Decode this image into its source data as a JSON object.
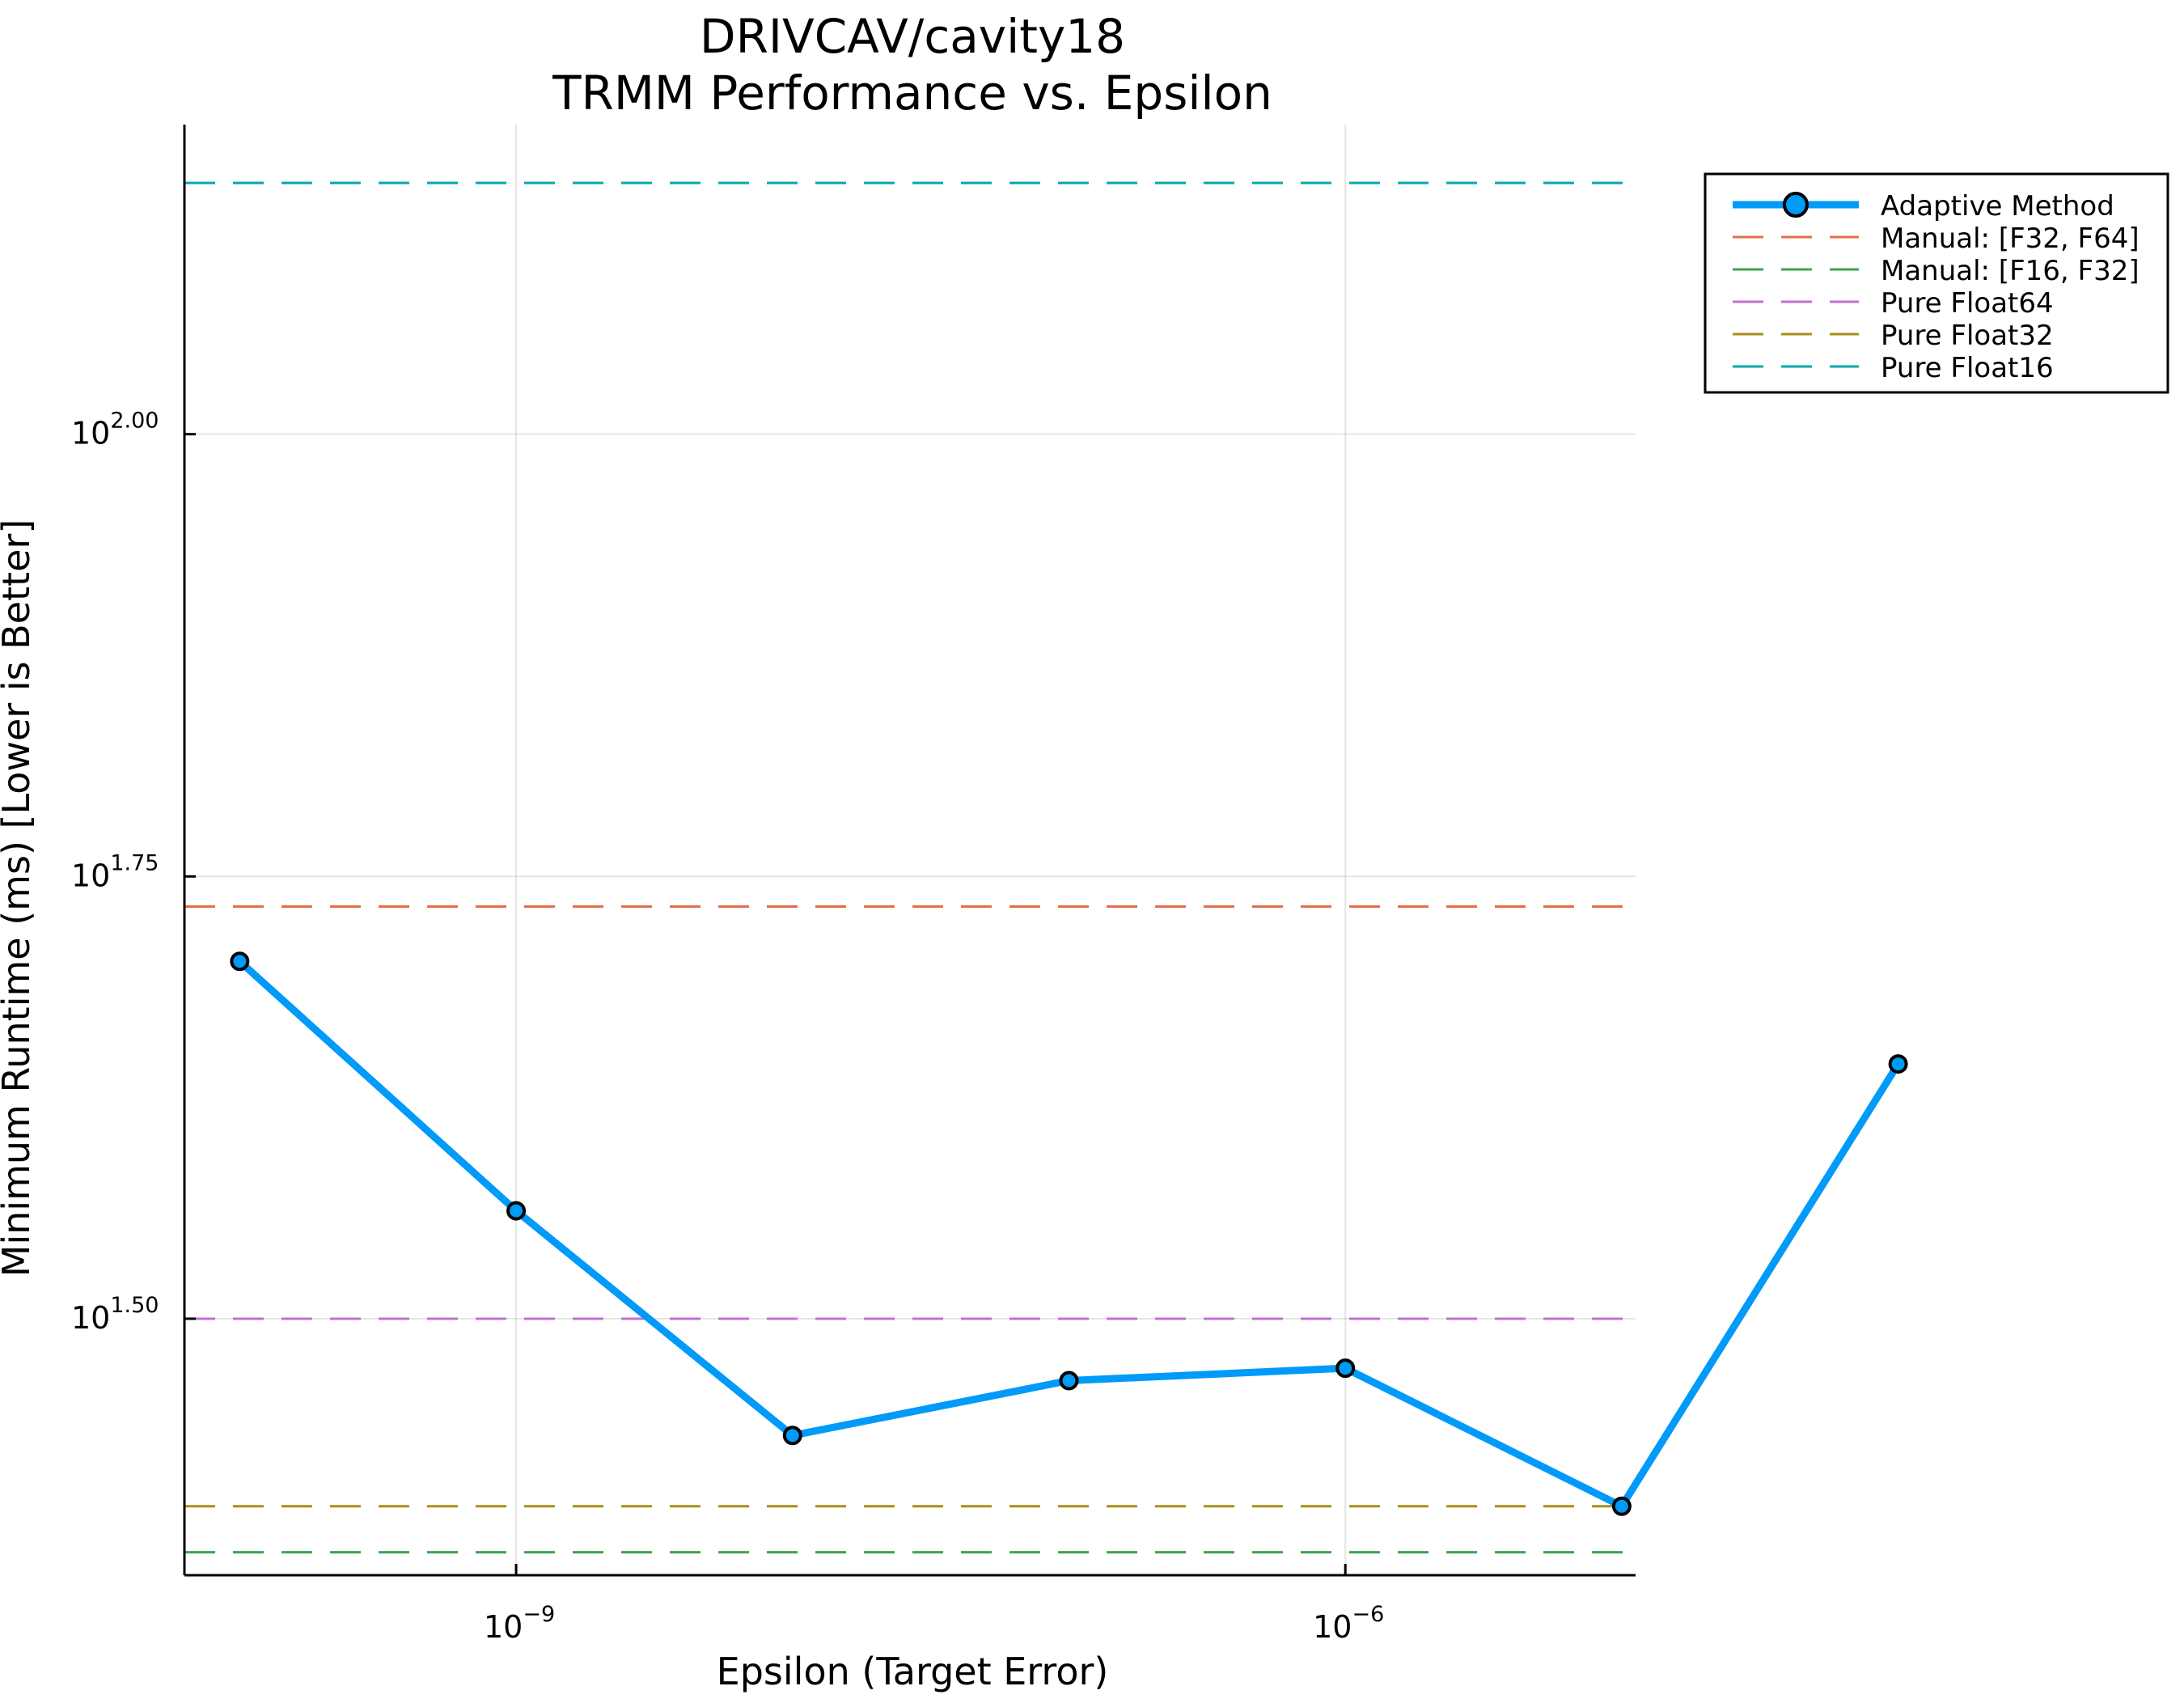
{
  "chart_data": {
    "type": "line",
    "title_line1": "DRIVCAV/cavity18",
    "title_line2": "TRMM Performance vs. Epsilon",
    "xlabel": "Epsilon (Target Error)",
    "ylabel": "Minimum Runtime (ms) [Lower is Better]",
    "x_scale": "log10",
    "y_scale": "log10",
    "xlim_log10": [
      -10.2,
      -4.95
    ],
    "ylim_log10": [
      1.355,
      2.175
    ],
    "x_ticks": [
      {
        "log10": -9,
        "base": "10",
        "exp": "−9"
      },
      {
        "log10": -6,
        "base": "10",
        "exp": "−6"
      }
    ],
    "y_ticks": [
      {
        "log10": 1.5,
        "base": "10",
        "exp": "1.50"
      },
      {
        "log10": 1.75,
        "base": "10",
        "exp": "1.75"
      },
      {
        "log10": 2.0,
        "base": "10",
        "exp": "2.00"
      }
    ],
    "grid": true,
    "legend_position": "outer-top-right",
    "series": [
      {
        "name": "Adaptive Method",
        "kind": "line-markers",
        "color": "#009af9",
        "x_log10": [
          -10,
          -9,
          -8,
          -7,
          -6,
          -5,
          -4
        ],
        "y_log10": [
          1.702,
          1.561,
          1.434,
          1.465,
          1.472,
          1.394,
          1.644
        ]
      }
    ],
    "reference_lines": [
      {
        "name": "Manual: [F32, F64]",
        "color": "#e26f46",
        "y_log10": 1.733
      },
      {
        "name": "Manual: [F16, F32]",
        "color": "#3da44d",
        "y_log10": 1.368
      },
      {
        "name": "Pure Float64",
        "color": "#c271d2",
        "y_log10": 1.5
      },
      {
        "name": "Pure Float32",
        "color": "#ac8e18",
        "y_log10": 1.394
      },
      {
        "name": "Pure Float16",
        "color": "#00a9ad",
        "y_log10": 2.142
      }
    ]
  }
}
